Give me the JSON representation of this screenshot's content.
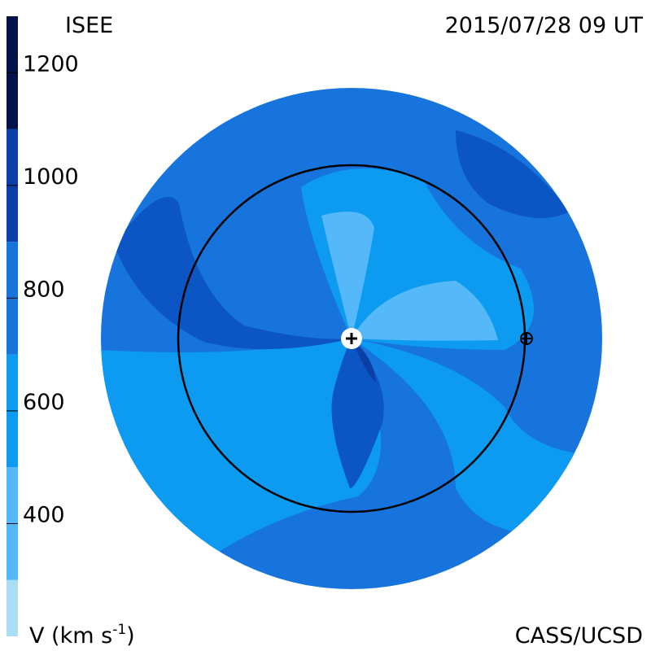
{
  "chart_data": {
    "type": "velocity-map",
    "title": "ISEE",
    "timestamp": "2015/07/28 09 UT",
    "credit": "CASS/UCSD",
    "colorbar_label": "V (km s",
    "colorbar_label_exponent": "-1",
    "colorbar_label_close": ")",
    "clim": [
      200,
      1300
    ],
    "cticks": [
      400,
      600,
      800,
      1000,
      1200
    ],
    "bands": [
      {
        "from": 200,
        "to": 300,
        "color": "#a9ddf6"
      },
      {
        "from": 300,
        "to": 500,
        "color": "#55b8f8"
      },
      {
        "from": 500,
        "to": 700,
        "color": "#0c9bf0"
      },
      {
        "from": 700,
        "to": 900,
        "color": "#1674dc"
      },
      {
        "from": 900,
        "to": 1100,
        "color": "#0b3fa6"
      },
      {
        "from": 1100,
        "to": 1300,
        "color": "#04124a"
      }
    ]
  }
}
